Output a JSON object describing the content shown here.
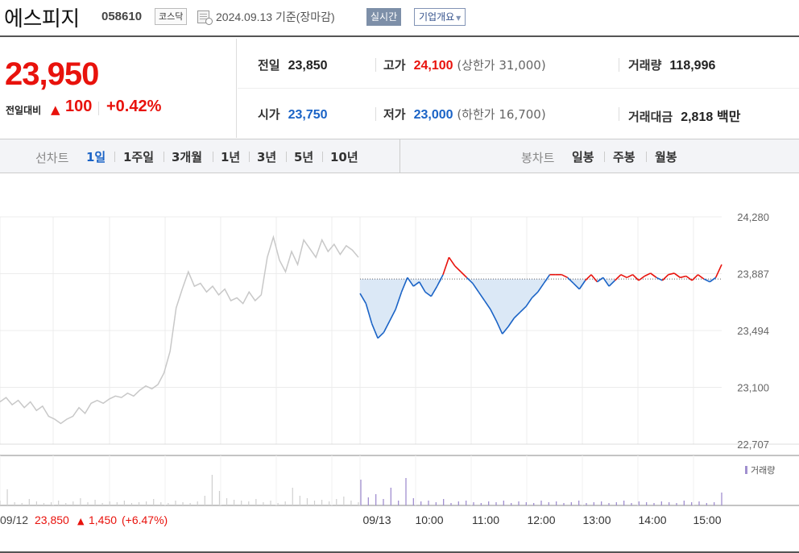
{
  "header": {
    "name": "에스피지",
    "code": "058610",
    "market": "코스닥",
    "date_text": "2024.09.13  기준(장마감)",
    "realtime_label": "실시간",
    "company_label": "기업개요"
  },
  "price": {
    "current": "23,950",
    "change_label": "전일대비",
    "change_arrow": "▲",
    "change": "100",
    "change_pct": "+0.42%"
  },
  "stats": {
    "prev_close_label": "전일",
    "prev_close": "23,850",
    "high_label": "고가",
    "high": "24,100",
    "upper_limit_text": "(상한가 31,000)",
    "volume_label": "거래량",
    "volume": "118,996",
    "open_label": "시가",
    "open": "23,750",
    "low_label": "저가",
    "low": "23,000",
    "lower_limit_text": "(하한가 16,700)",
    "amount_label": "거래대금",
    "amount": "2,818",
    "amount_unit": "백만"
  },
  "tabs": {
    "line_label": "선차트",
    "periods": [
      "1일",
      "1주일",
      "3개월",
      "1년",
      "3년",
      "5년",
      "10년"
    ],
    "candle_label": "봉차트",
    "candles": [
      "일봉",
      "주봉",
      "월봉"
    ]
  },
  "colors": {
    "up": "#e8120c",
    "down": "#1a63c6",
    "prev_day": "#c8c8c8",
    "volume": "#a08fcf"
  },
  "chart_data": {
    "type": "line",
    "y_ticks": [
      "24,280",
      "23,887",
      "23,494",
      "23,100",
      "22,707"
    ],
    "ylim": [
      22707,
      24280
    ],
    "baseline": 23850,
    "x_ticks": [
      "09/13",
      "10:00",
      "11:00",
      "12:00",
      "13:00",
      "14:00",
      "15:00"
    ],
    "volume_legend": "거래량",
    "prev_day_note": {
      "date": "09/12",
      "close": "23,850",
      "arrow": "▲",
      "change": "1,450",
      "pct": "(+6.47%)"
    },
    "series": [
      {
        "values": [
          23000,
          23030,
          22980,
          23010,
          22960,
          23000,
          22940,
          22970,
          22900,
          22880,
          22850,
          22880,
          22900,
          22960,
          22920,
          22990,
          23010,
          22990,
          23020,
          23040,
          23030,
          23060,
          23040,
          23080,
          23110,
          23090,
          23120,
          23200,
          23350,
          23650,
          23780,
          23900,
          23800,
          23820,
          23760,
          23800,
          23740,
          23780,
          23700,
          23720,
          23680,
          23760,
          23700,
          23740,
          24000,
          24140,
          23980,
          23900,
          24040,
          23950,
          24120,
          24060,
          24000,
          24120,
          24040,
          24090,
          24020,
          24080,
          24050,
          24000
        ]
      },
      {
        "values": [
          23750,
          23680,
          23540,
          23440,
          23480,
          23560,
          23640,
          23760,
          23860,
          23800,
          23830,
          23760,
          23730,
          23800,
          23880,
          24000,
          23940,
          23900,
          23860,
          23820,
          23760,
          23700,
          23640,
          23560,
          23470,
          23520,
          23580,
          23620,
          23660,
          23720,
          23760,
          23820,
          23880,
          23880,
          23880,
          23860,
          23820,
          23780,
          23840,
          23880,
          23830,
          23860,
          23800,
          23840,
          23880,
          23860,
          23880,
          23840,
          23870,
          23890,
          23860,
          23840,
          23880,
          23890,
          23860,
          23870,
          23840,
          23880,
          23850,
          23830,
          23860,
          23950
        ]
      }
    ]
  }
}
